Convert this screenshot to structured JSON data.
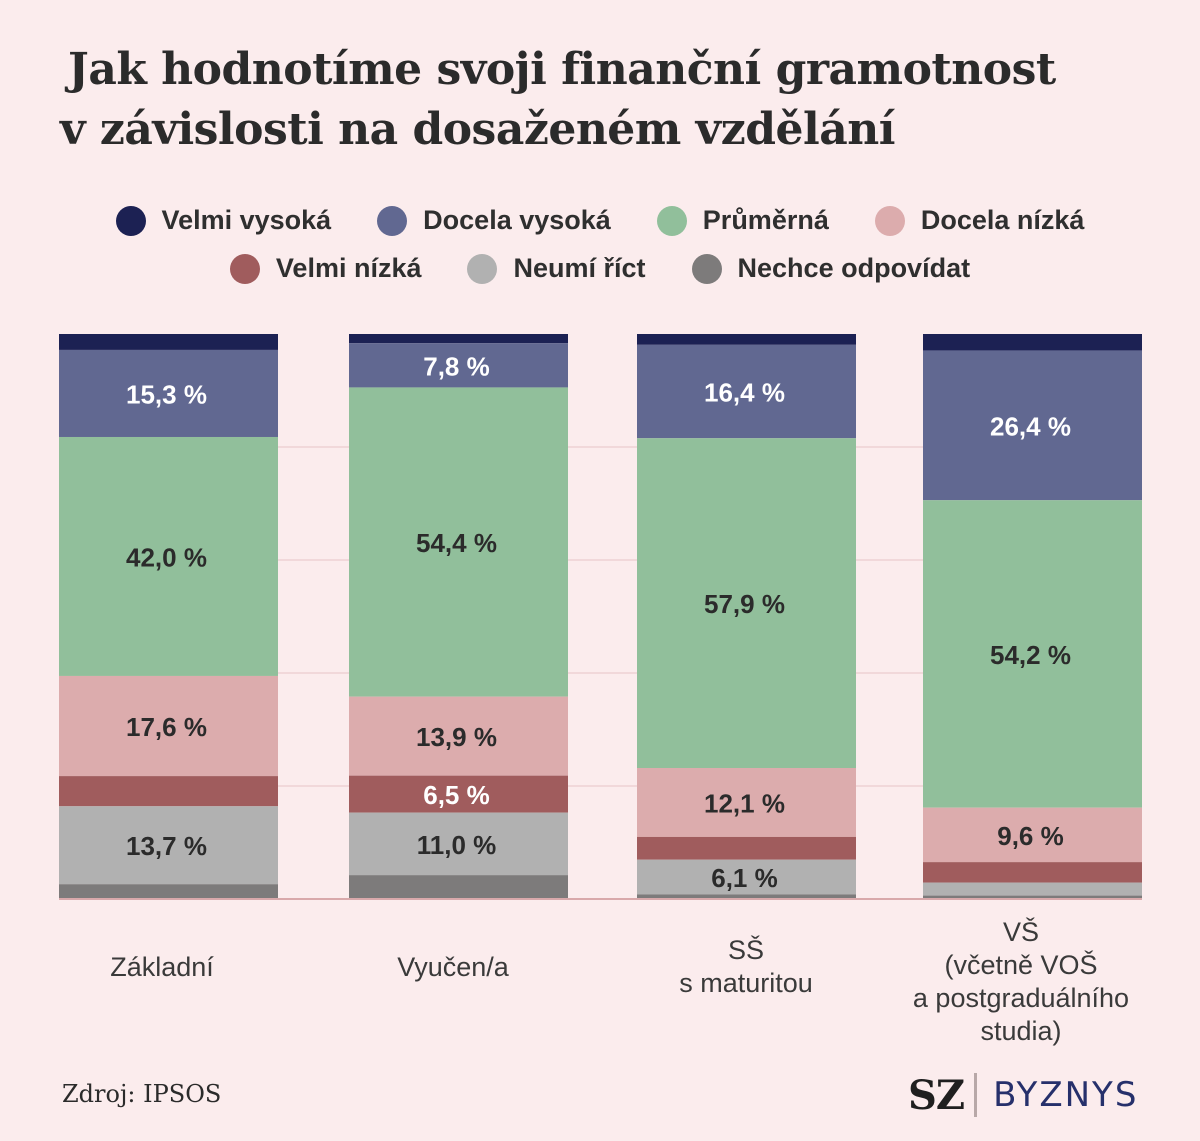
{
  "title_lines": [
    "Jak hodnotíme svoji finanční gramotnost",
    "v závislosti na dosaženém vzdělání"
  ],
  "source": "Zdroj: IPSOS",
  "logo": {
    "left": "SZ",
    "right": "BYZNYS"
  },
  "legend": [
    {
      "name": "Velmi vysoká",
      "color": "#1c2153"
    },
    {
      "name": "Docela vysoká",
      "color": "#616891"
    },
    {
      "name": "Průměrná",
      "color": "#91bf9b"
    },
    {
      "name": "Docela nízká",
      "color": "#dcacad"
    },
    {
      "name": "Velmi nízká",
      "color": "#a05c5d"
    },
    {
      "name": "Neumí říct",
      "color": "#b1b1b1"
    },
    {
      "name": "Nechce odpovídat",
      "color": "#7d7b7b"
    }
  ],
  "chart_data": {
    "type": "bar",
    "stacked": true,
    "title": "Jak hodnotíme svoji finanční gramotnost v závislosti na dosaženém vzdělání",
    "ylim": [
      0,
      100
    ],
    "categories": [
      [
        "Základní"
      ],
      [
        "Vyučen/a"
      ],
      [
        "SŠ",
        "s maturitou"
      ],
      [
        "VŠ",
        "(včetně VOŠ",
        "a postgraduálního",
        "studia)"
      ]
    ],
    "series": [
      {
        "name": "Velmi vysoká",
        "color": "#1c2153",
        "values": [
          2.8,
          1.6,
          1.9,
          2.9
        ],
        "labels": [
          "",
          "",
          "",
          ""
        ]
      },
      {
        "name": "Docela vysoká",
        "color": "#616891",
        "values": [
          15.3,
          7.8,
          16.4,
          26.4
        ],
        "labels": [
          "15,3 %",
          "7,8 %",
          "16,4 %",
          "26,4 %"
        ]
      },
      {
        "name": "Průměrná",
        "color": "#91bf9b",
        "values": [
          42.0,
          54.4,
          57.9,
          54.2
        ],
        "labels": [
          "42,0 %",
          "54,4 %",
          "57,9 %",
          "54,2 %"
        ]
      },
      {
        "name": "Docela nízká",
        "color": "#dcacad",
        "values": [
          17.6,
          13.9,
          12.1,
          9.6
        ],
        "labels": [
          "17,6 %",
          "13,9 %",
          "12,1 %",
          "9,6 %"
        ]
      },
      {
        "name": "Velmi nízká",
        "color": "#a05c5d",
        "values": [
          5.3,
          6.5,
          4.0,
          3.6
        ],
        "labels": [
          "",
          "6,5 %",
          "",
          ""
        ]
      },
      {
        "name": "Neumí říct",
        "color": "#b1b1b1",
        "values": [
          13.7,
          11.0,
          6.1,
          2.3
        ],
        "labels": [
          "13,7 %",
          "11,0 %",
          "6,1 %",
          ""
        ]
      },
      {
        "name": "Nechce odpovídat",
        "color": "#7d7b7b",
        "values": [
          2.6,
          4.2,
          0.8,
          0.6
        ],
        "labels": [
          "",
          "",
          "",
          ""
        ]
      }
    ]
  }
}
